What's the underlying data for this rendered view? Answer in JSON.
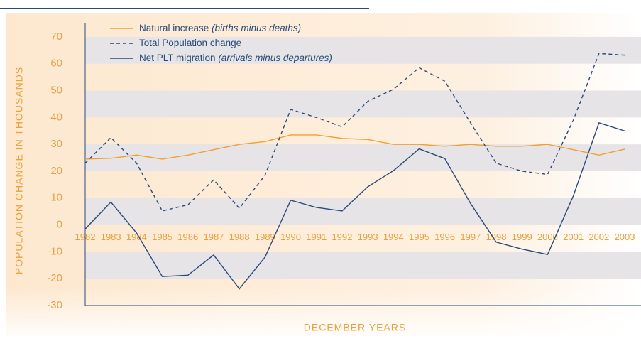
{
  "chart_data": {
    "type": "line",
    "x_label": "DECEMBER YEARS",
    "y_label": "POPULATION CHANGE IN THOUSANDS",
    "x": [
      1982,
      1983,
      1984,
      1985,
      1986,
      1987,
      1988,
      1989,
      1990,
      1991,
      1992,
      1993,
      1994,
      1995,
      1996,
      1997,
      1998,
      1999,
      2000,
      2001,
      2002,
      2003
    ],
    "xlim": [
      1982,
      2003
    ],
    "xticks": [
      1982,
      1983,
      1984,
      1985,
      1986,
      1987,
      1988,
      1989,
      1990,
      1991,
      1992,
      1993,
      1994,
      1995,
      1996,
      1997,
      1998,
      1999,
      2000,
      2001,
      2002,
      2003
    ],
    "ylim": [
      -30,
      75
    ],
    "yticks": [
      -30,
      -20,
      -10,
      0,
      10,
      20,
      30,
      40,
      50,
      60,
      70
    ],
    "grid": true,
    "legend": "top-left",
    "series": [
      {
        "name": "Natural increase",
        "note": "(births minus deaths)",
        "color": "#f0a030",
        "dash": false,
        "values": [
          24.5,
          24.8,
          26,
          24.5,
          26,
          28,
          30,
          31,
          33.5,
          33.5,
          32.2,
          31.8,
          30,
          30,
          29.3,
          30,
          29.3,
          29.3,
          30,
          28,
          26,
          28.2
        ]
      },
      {
        "name": "Total Population change",
        "color": "#2a4a7a",
        "dash": true,
        "values": [
          23,
          32.5,
          23,
          5.2,
          7.5,
          16.8,
          6.2,
          18.5,
          43,
          40,
          36.5,
          46,
          50.5,
          58.5,
          53.5,
          38,
          23,
          20,
          18.8,
          39,
          63.8,
          63.2
        ]
      },
      {
        "name": "Net PLT migration",
        "note": "(arrivals minus departures)",
        "color": "#2a4a7a",
        "dash": false,
        "values": [
          -1.5,
          8.5,
          -3,
          -19.2,
          -18.7,
          -11.2,
          -23.8,
          -12,
          9.2,
          6.5,
          5.2,
          14.2,
          20.2,
          28.3,
          24.7,
          8,
          -6.4,
          -9,
          -11,
          10.8,
          38,
          35
        ]
      }
    ]
  }
}
